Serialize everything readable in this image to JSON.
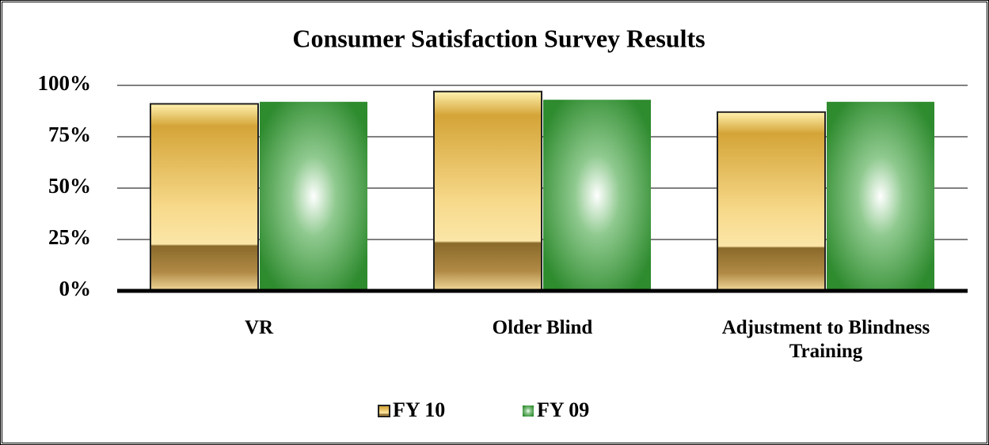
{
  "chart_data": {
    "type": "bar",
    "title": "Consumer Satisfaction Survey Results",
    "categories": [
      "VR",
      "Older Blind",
      "Adjustment to Blindness Training"
    ],
    "series": [
      {
        "name": "FY 10",
        "color": "#d4a437",
        "values": [
          91,
          97,
          87
        ]
      },
      {
        "name": "FY 09",
        "color": "#2e8b2e",
        "values": [
          92,
          93,
          92
        ]
      }
    ],
    "ylim": [
      0,
      100
    ],
    "yticks": [
      {
        "value": 0,
        "label": "0%"
      },
      {
        "value": 25,
        "label": "25%"
      },
      {
        "value": 50,
        "label": "50%"
      },
      {
        "value": 75,
        "label": "75%"
      },
      {
        "value": 100,
        "label": "100%"
      }
    ],
    "grid": true,
    "legend": "bottom"
  }
}
